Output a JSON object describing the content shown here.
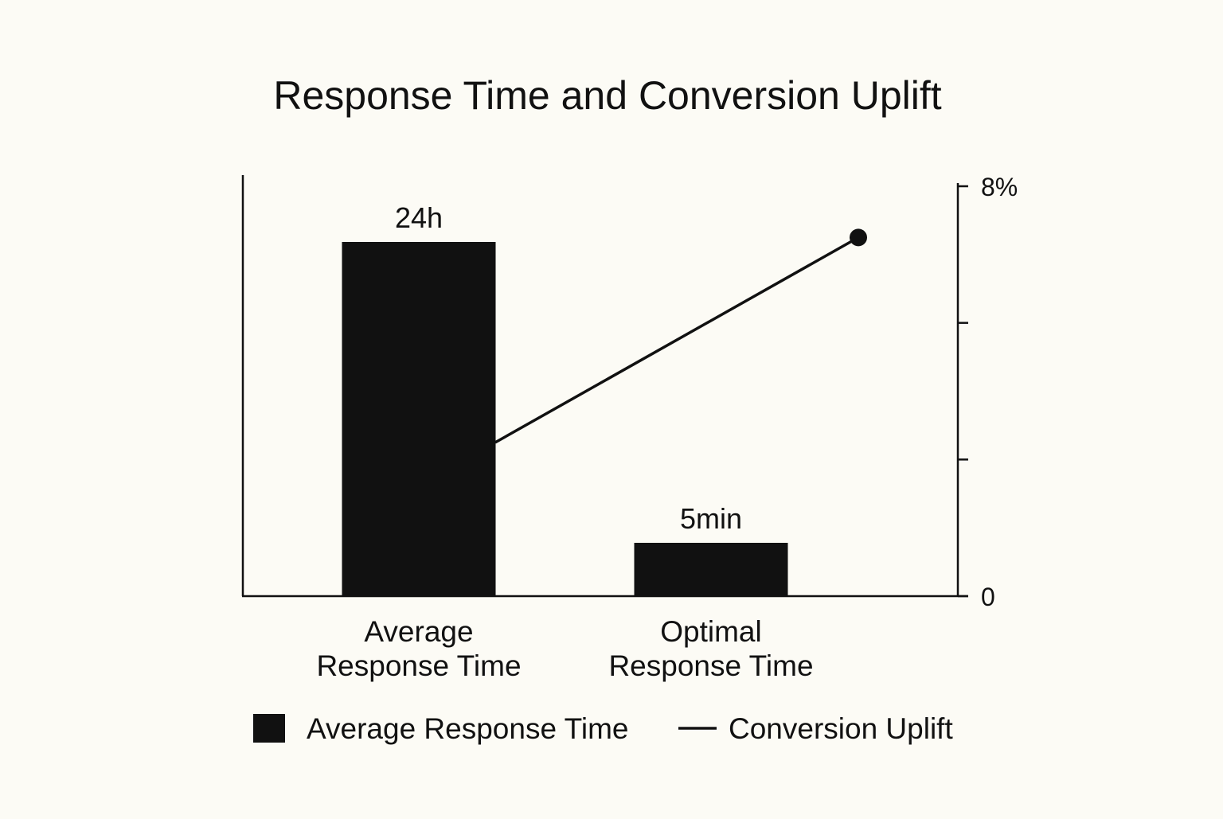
{
  "chart_data": {
    "type": "bar",
    "title": "Response Time and Conversion Uplift",
    "categories": [
      "Average\nResponse Time",
      "Optimal\nResponse Time"
    ],
    "series": [
      {
        "name": "Average Response Time",
        "type": "bar",
        "axis": "left",
        "values": [
          1440,
          5
        ],
        "data_labels": [
          "24h",
          "5min"
        ]
      },
      {
        "name": "Conversion Uplift",
        "type": "line",
        "axis": "right",
        "points": [
          {
            "x": "Average\nResponse Time",
            "y": 3.0
          },
          {
            "x": "Optimal\nResponse Time",
            "y": 7.0
          }
        ]
      }
    ],
    "y2_axis": {
      "ticks": [
        "0",
        "",
        "",
        "8%"
      ],
      "ylim": [
        0,
        8
      ]
    },
    "legend": {
      "position": "bottom",
      "items": [
        "Average Response Time",
        "Conversion Uplift"
      ]
    },
    "colors": {
      "background": "#fcfbf5",
      "ink": "#111111"
    },
    "grid": false
  }
}
